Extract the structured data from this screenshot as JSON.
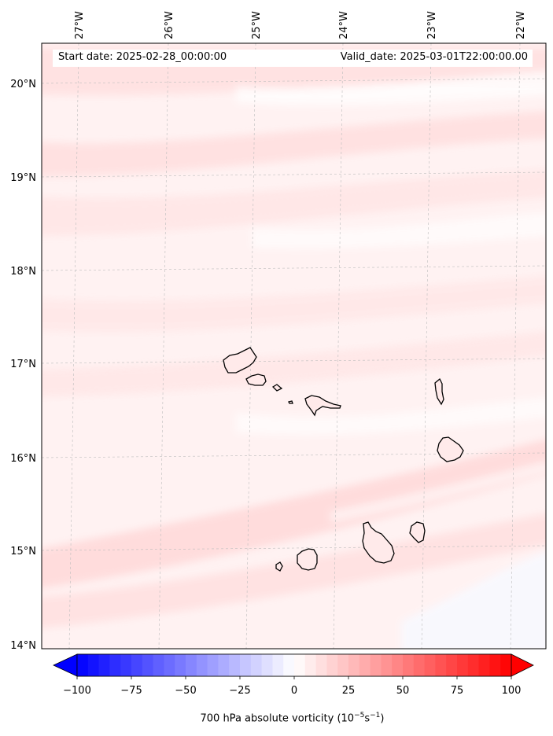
{
  "header": {
    "start_date": "Start date: 2025-02-28_00:00:00",
    "valid_date": "Valid_date: 2025-03-01T22:00:00.00"
  },
  "map": {
    "lon_labels": [
      "27°W",
      "26°W",
      "25°W",
      "24°W",
      "23°W",
      "22°W"
    ],
    "lat_labels": [
      "20°N",
      "19°N",
      "18°N",
      "17°N",
      "16°N",
      "15°N",
      "14°N"
    ],
    "lon_range": [
      -27.35,
      -21.75
    ],
    "lat_range": [
      13.95,
      20.4
    ],
    "gridlines": true,
    "colors": {
      "land_outline": "#000000",
      "field_light": "#fff3f3",
      "field_mid": "#ffe3e3"
    }
  },
  "colorbar": {
    "ticks": [
      "−100",
      "−75",
      "−50",
      "−25",
      "0",
      "25",
      "50",
      "75",
      "100"
    ],
    "label_main": "700 hPa absolute vorticity (10",
    "label_exp1": "−5",
    "label_mid": "s",
    "label_exp2": "−1",
    "label_end": ")",
    "range": [
      -100,
      100
    ],
    "extend": "both",
    "colors": {
      "min": "#0000ff",
      "mid": "#ffffff",
      "max": "#ff0000"
    }
  }
}
